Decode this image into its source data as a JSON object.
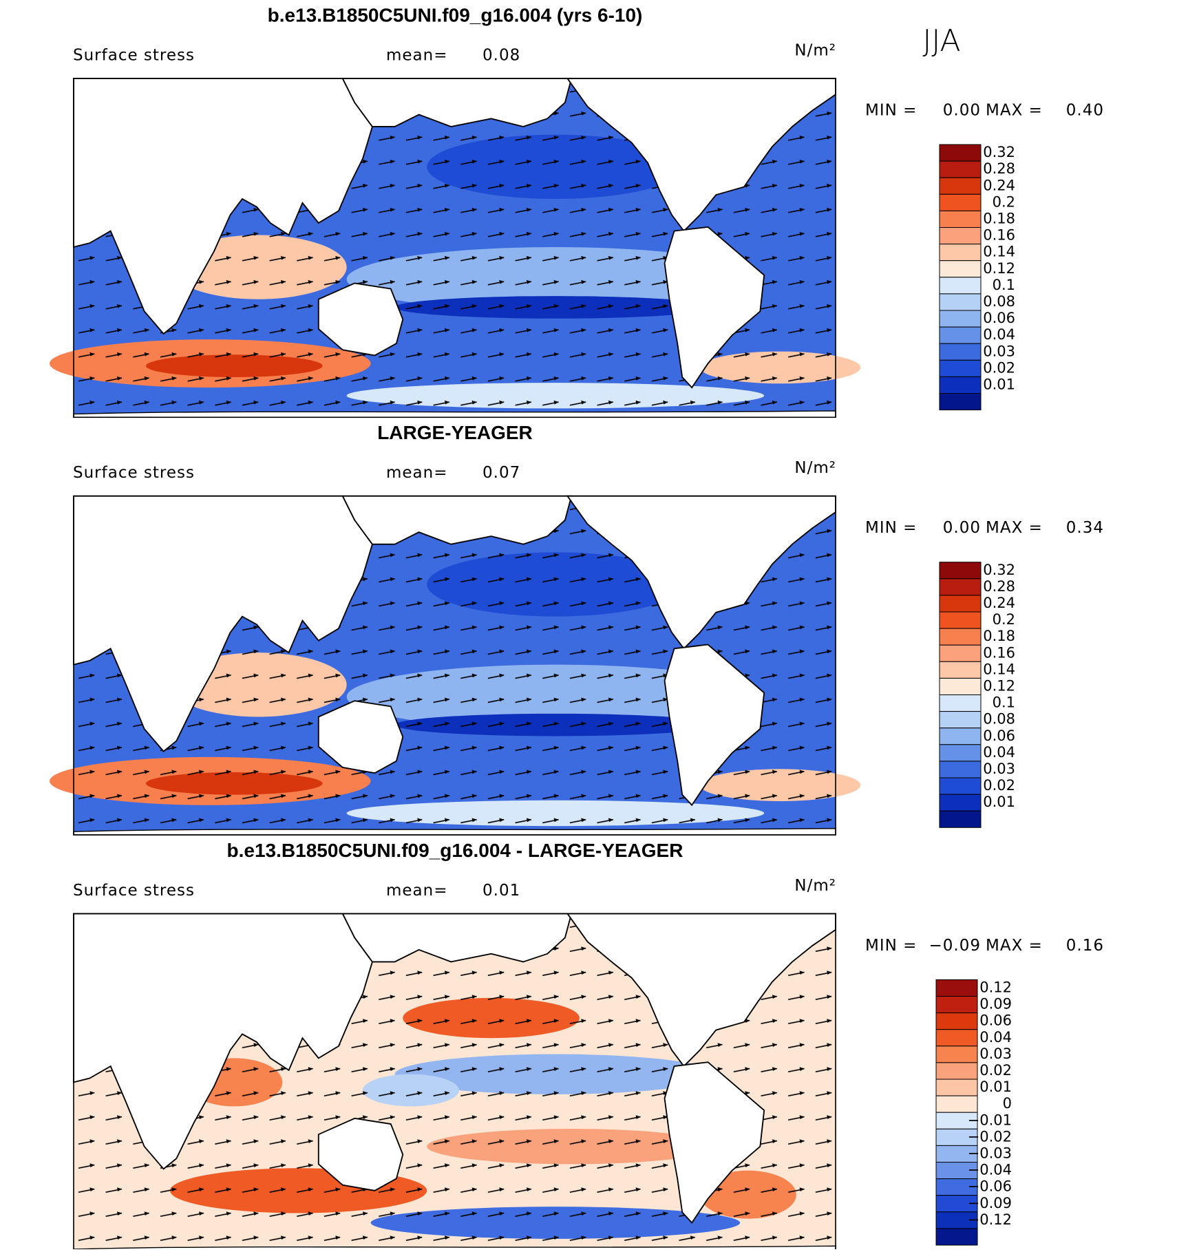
{
  "header": {
    "season": "JJA"
  },
  "panels": [
    {
      "title": "b.e13.B1850C5UNI.f09_g16.004 (yrs 6-10)",
      "variable": "Surface stress",
      "mean_label": "mean=",
      "mean": "0.08",
      "units": "N/m²",
      "min_label": "MIN =",
      "min": "0.00",
      "max_label": "MAX =",
      "max": "0.40",
      "colorbar": {
        "labels": [
          "0.32",
          "0.28",
          "0.24",
          "0.2",
          "0.18",
          "0.16",
          "0.14",
          "0.12",
          "0.1",
          "0.08",
          "0.06",
          "0.04",
          "0.03",
          "0.02",
          "0.01"
        ],
        "colors": [
          "#8e0a0a",
          "#b81d0f",
          "#d8360c",
          "#ef5320",
          "#f8804e",
          "#fba27c",
          "#fdc8a8",
          "#fde9d7",
          "#d6e8fa",
          "#b5d1f6",
          "#8fb5f0",
          "#6592e8",
          "#3c6be0",
          "#1f4cd5",
          "#0c30bb",
          "#03168c"
        ]
      }
    },
    {
      "title": "LARGE-YEAGER",
      "variable": "Surface stress",
      "mean_label": "mean=",
      "mean": "0.07",
      "units": "N/m²",
      "min_label": "MIN =",
      "min": "0.00",
      "max_label": "MAX =",
      "max": "0.34",
      "colorbar": {
        "labels": [
          "0.32",
          "0.28",
          "0.24",
          "0.2",
          "0.18",
          "0.16",
          "0.14",
          "0.12",
          "0.1",
          "0.08",
          "0.06",
          "0.04",
          "0.03",
          "0.02",
          "0.01"
        ],
        "colors": [
          "#8e0a0a",
          "#b81d0f",
          "#d8360c",
          "#ef5320",
          "#f8804e",
          "#fba27c",
          "#fdc8a8",
          "#fde9d7",
          "#d6e8fa",
          "#b5d1f6",
          "#8fb5f0",
          "#6592e8",
          "#3c6be0",
          "#1f4cd5",
          "#0c30bb",
          "#03168c"
        ]
      }
    },
    {
      "title": "b.e13.B1850C5UNI.f09_g16.004 - LARGE-YEAGER",
      "variable": "Surface stress",
      "mean_label": "mean=",
      "mean": "0.01",
      "units": "N/m²",
      "min_label": "MIN =",
      "min": "−0.09",
      "max_label": "MAX =",
      "max": "0.16",
      "colorbar": {
        "labels": [
          "0.12",
          "0.09",
          "0.06",
          "0.04",
          "0.03",
          "0.02",
          "0.01",
          "0",
          "−0.01",
          "−0.02",
          "−0.03",
          "−0.04",
          "−0.06",
          "−0.09",
          "−0.12"
        ],
        "colors": [
          "#9a0e0e",
          "#bf2010",
          "#dc3a0e",
          "#f05a24",
          "#f7834f",
          "#faa27c",
          "#fcc5a6",
          "#fde6d4",
          "#d8e8fb",
          "#b8d2f6",
          "#93b6f0",
          "#6a93e8",
          "#3f6ce0",
          "#214bd4",
          "#0d30ba",
          "#04178c"
        ]
      }
    }
  ]
}
